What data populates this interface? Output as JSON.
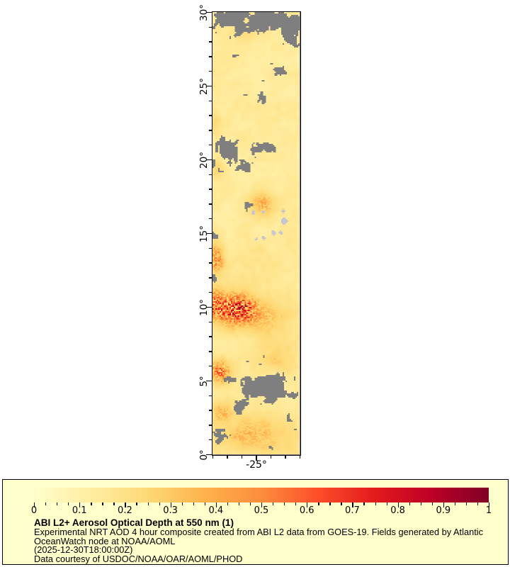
{
  "legend": {
    "title": "ABI L2+ Aerosol Optical Depth at 550 nm (1)",
    "description_lines": [
      "Experimental NRT AOD 4 hour composite created from ABI L2 data from GOES-19. Fields generated by Atlantic",
      "OceanWatch node at NOAA/AOML"
    ],
    "timestamp_line": "(2025-12-30T18:00:00Z)",
    "courtesy_line": "Data courtesy of USDOC/NOAA/OAR/AOML/PHOD",
    "background_color": "#ffffcc"
  },
  "chart_data": {
    "type": "heatmap",
    "title": "ABI L2+ Aerosol Optical Depth at 550 nm (1)",
    "variable": "Aerosol Optical Depth at 550 nm",
    "source": "ABI L2 data from GOES-19",
    "x_axis": {
      "range": [
        -28,
        -22
      ],
      "minor_step": 1,
      "labeled_ticks": [
        {
          "value": -25,
          "label": "-25°"
        }
      ]
    },
    "y_axis": {
      "range": [
        0,
        30
      ],
      "minor_step": 1,
      "labeled_ticks": [
        {
          "value": 30,
          "label": "30°"
        },
        {
          "value": 25,
          "label": "25°"
        },
        {
          "value": 20,
          "label": "20°"
        },
        {
          "value": 15,
          "label": "15°"
        },
        {
          "value": 10,
          "label": "10°"
        },
        {
          "value": 5,
          "label": "5°"
        },
        {
          "value": 0,
          "label": "0°"
        }
      ]
    },
    "colorbar": {
      "min": 0,
      "max": 1,
      "minor_step": 0.025,
      "tick_labels": [
        "0",
        "0.1",
        "0.2",
        "0.3",
        "0.4",
        "0.5",
        "0.6",
        "0.7",
        "0.8",
        "0.9",
        "1"
      ],
      "colormap": "YlOrRd",
      "stops": [
        [
          0.0,
          "#ffffcc"
        ],
        [
          0.125,
          "#ffeda0"
        ],
        [
          0.25,
          "#fed976"
        ],
        [
          0.375,
          "#feb24c"
        ],
        [
          0.5,
          "#fd8d3c"
        ],
        [
          0.625,
          "#fc4e2a"
        ],
        [
          0.75,
          "#e31a1c"
        ],
        [
          0.875,
          "#bd0026"
        ],
        [
          1.0,
          "#800026"
        ]
      ]
    },
    "field": {
      "base_aod": 0.14,
      "no_data_color": "#7f7f7f",
      "island_color": "#c6c6d2",
      "aod_bumps": [
        {
          "lat": 9.8,
          "lon": -26.2,
          "rlat": 1.15,
          "rlon": 1.5,
          "amp": 0.42
        },
        {
          "lat": 10.3,
          "lon": -27.9,
          "rlat": 1.2,
          "rlon": 0.8,
          "amp": 0.22
        },
        {
          "lat": 9.0,
          "lon": -23.8,
          "rlat": 1.5,
          "rlon": 1.5,
          "amp": 0.13
        },
        {
          "lat": 13.3,
          "lon": -27.7,
          "rlat": 1.1,
          "rlon": 0.5,
          "amp": 0.26
        },
        {
          "lat": 5.6,
          "lon": -27.5,
          "rlat": 0.8,
          "rlon": 0.8,
          "amp": 0.3
        },
        {
          "lat": 6.4,
          "lon": -23.6,
          "rlat": 0.9,
          "rlon": 1.5,
          "amp": 0.13
        },
        {
          "lat": 17.0,
          "lon": -24.5,
          "rlat": 0.8,
          "rlon": 1.0,
          "amp": 0.18
        },
        {
          "lat": 19.3,
          "lon": -27.7,
          "rlat": 0.7,
          "rlon": 0.5,
          "amp": 0.14
        },
        {
          "lat": 1.3,
          "lon": -25.0,
          "rlat": 1.6,
          "rlon": 3.0,
          "amp": 0.18
        },
        {
          "lat": 2.9,
          "lon": -27.4,
          "rlat": 0.7,
          "rlon": 0.7,
          "amp": 0.15
        },
        {
          "lat": 13.0,
          "lon": -24.8,
          "rlat": 1.3,
          "rlon": 2.0,
          "amp": 0.05
        },
        {
          "lat": 28.6,
          "lon": -25.8,
          "rlat": 0.7,
          "rlon": 1.2,
          "amp": 0.07
        },
        {
          "lat": 22.6,
          "lon": -27.9,
          "rlat": 1.0,
          "rlon": 0.45,
          "amp": 0.08
        }
      ],
      "cloud_blobs": [
        {
          "lat": 29.6,
          "lon": -27.0,
          "rlat": 1.1,
          "rlon": 2.0,
          "w": 1.0
        },
        {
          "lat": 29.4,
          "lon": -23.3,
          "rlat": 0.9,
          "rlon": 1.5,
          "w": 0.9
        },
        {
          "lat": 28.1,
          "lon": -22.5,
          "rlat": 0.8,
          "rlon": 0.9,
          "w": 0.65
        },
        {
          "lat": 27.6,
          "lon": -25.3,
          "rlat": 0.55,
          "rlon": 0.7,
          "w": 0.5
        },
        {
          "lat": 26.9,
          "lon": -26.6,
          "rlat": 0.5,
          "rlon": 0.6,
          "w": 0.5
        },
        {
          "lat": 25.9,
          "lon": -23.9,
          "rlat": 0.7,
          "rlon": 1.0,
          "w": 0.55
        },
        {
          "lat": 25.1,
          "lon": -26.3,
          "rlat": 0.5,
          "rlon": 0.7,
          "w": 0.5
        },
        {
          "lat": 24.2,
          "lon": -24.6,
          "rlat": 0.6,
          "rlon": 1.0,
          "w": 0.5
        },
        {
          "lat": 23.3,
          "lon": -25.6,
          "rlat": 0.5,
          "rlon": 0.8,
          "w": 0.45
        },
        {
          "lat": 23.6,
          "lon": -22.4,
          "rlat": 0.5,
          "rlon": 0.6,
          "w": 0.45
        },
        {
          "lat": 20.4,
          "lon": -26.9,
          "rlat": 1.0,
          "rlon": 1.0,
          "w": 0.95
        },
        {
          "lat": 20.7,
          "lon": -24.2,
          "rlat": 0.45,
          "rlon": 1.7,
          "w": 0.6
        },
        {
          "lat": 19.4,
          "lon": -25.9,
          "rlat": 0.5,
          "rlon": 0.8,
          "w": 0.5
        },
        {
          "lat": 16.9,
          "lon": -25.6,
          "rlat": 0.35,
          "rlon": 0.45,
          "w": 0.5
        },
        {
          "lat": 16.0,
          "lon": -27.9,
          "rlat": 0.5,
          "rlon": 0.4,
          "w": 0.6
        },
        {
          "lat": 14.9,
          "lon": -27.8,
          "rlat": 0.7,
          "rlon": 0.4,
          "w": 0.65
        },
        {
          "lat": 12.1,
          "lon": -27.9,
          "rlat": 0.5,
          "rlon": 0.35,
          "w": 0.5
        },
        {
          "lat": 4.6,
          "lon": -24.3,
          "rlat": 1.2,
          "rlon": 2.1,
          "w": 1.15
        },
        {
          "lat": 5.2,
          "lon": -27.2,
          "rlat": 0.5,
          "rlon": 0.7,
          "w": 0.5
        },
        {
          "lat": 3.3,
          "lon": -26.2,
          "rlat": 0.7,
          "rlon": 0.9,
          "w": 0.6
        },
        {
          "lat": 2.2,
          "lon": -22.5,
          "rlat": 0.6,
          "rlon": 0.8,
          "w": 0.55
        },
        {
          "lat": 1.1,
          "lon": -27.6,
          "rlat": 0.9,
          "rlon": 0.55,
          "w": 0.85
        },
        {
          "lat": 0.3,
          "lon": -24.0,
          "rlat": 0.3,
          "rlon": 0.8,
          "w": 0.4
        }
      ],
      "islands": [
        {
          "lat": 16.4,
          "lon": -25.2,
          "r": 0.12
        },
        {
          "lat": 16.45,
          "lon": -24.5,
          "r": 0.1
        },
        {
          "lat": 16.5,
          "lon": -23.1,
          "r": 0.12
        },
        {
          "lat": 15.8,
          "lon": -23.05,
          "r": 0.22
        },
        {
          "lat": 15.0,
          "lon": -23.8,
          "r": 0.15
        },
        {
          "lat": 15.05,
          "lon": -23.3,
          "r": 0.12
        },
        {
          "lat": 14.7,
          "lon": -24.5,
          "r": 0.13
        },
        {
          "lat": 14.6,
          "lon": -24.95,
          "r": 0.1
        }
      ]
    }
  }
}
